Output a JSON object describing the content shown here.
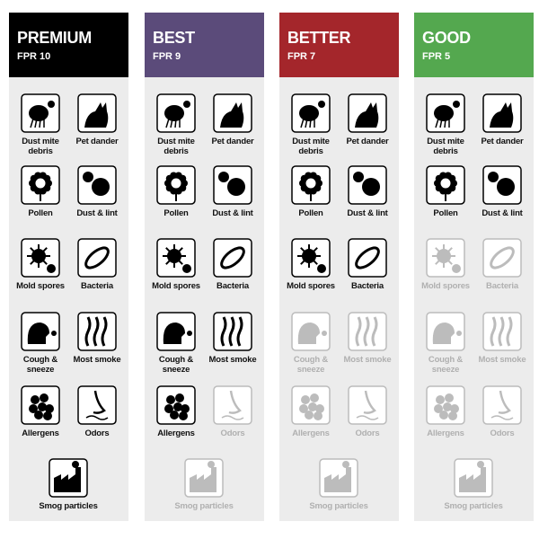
{
  "columns": [
    {
      "title": "PREMIUM",
      "rating": "FPR 10",
      "color": "#000000",
      "items": [
        {
          "label": "Dust mite debris",
          "active": true
        },
        {
          "label": "Pet dander",
          "active": true
        },
        {
          "label": "Pollen",
          "active": true
        },
        {
          "label": "Dust & lint",
          "active": true
        },
        {
          "label": "Mold spores",
          "active": true
        },
        {
          "label": "Bacteria",
          "active": true
        },
        {
          "label": "Cough & sneeze",
          "active": true
        },
        {
          "label": "Most smoke",
          "active": true
        },
        {
          "label": "Allergens",
          "active": true
        },
        {
          "label": "Odors",
          "active": true
        },
        {
          "label": "Smog particles",
          "active": true
        }
      ]
    },
    {
      "title": "BEST",
      "rating": "FPR 9",
      "color": "#5b4b7a",
      "items": [
        {
          "label": "Dust mite debris",
          "active": true
        },
        {
          "label": "Pet dander",
          "active": true
        },
        {
          "label": "Pollen",
          "active": true
        },
        {
          "label": "Dust & lint",
          "active": true
        },
        {
          "label": "Mold spores",
          "active": true
        },
        {
          "label": "Bacteria",
          "active": true
        },
        {
          "label": "Cough & sneeze",
          "active": true
        },
        {
          "label": "Most smoke",
          "active": true
        },
        {
          "label": "Allergens",
          "active": true
        },
        {
          "label": "Odors",
          "active": false
        },
        {
          "label": "Smog particles",
          "active": false
        }
      ]
    },
    {
      "title": "BETTER",
      "rating": "FPR 7",
      "color": "#a4262b",
      "items": [
        {
          "label": "Dust mite debris",
          "active": true
        },
        {
          "label": "Pet dander",
          "active": true
        },
        {
          "label": "Pollen",
          "active": true
        },
        {
          "label": "Dust & lint",
          "active": true
        },
        {
          "label": "Mold spores",
          "active": true
        },
        {
          "label": "Bacteria",
          "active": true
        },
        {
          "label": "Cough & sneeze",
          "active": false
        },
        {
          "label": "Most smoke",
          "active": false
        },
        {
          "label": "Allergens",
          "active": false
        },
        {
          "label": "Odors",
          "active": false
        },
        {
          "label": "Smog particles",
          "active": false
        }
      ]
    },
    {
      "title": "GOOD",
      "rating": "FPR 5",
      "color": "#54a84f",
      "items": [
        {
          "label": "Dust mite debris",
          "active": true
        },
        {
          "label": "Pet dander",
          "active": true
        },
        {
          "label": "Pollen",
          "active": true
        },
        {
          "label": "Dust & lint",
          "active": true
        },
        {
          "label": "Mold spores",
          "active": false
        },
        {
          "label": "Bacteria",
          "active": false
        },
        {
          "label": "Cough & sneeze",
          "active": false
        },
        {
          "label": "Most smoke",
          "active": false
        },
        {
          "label": "Allergens",
          "active": false
        },
        {
          "label": "Odors",
          "active": false
        },
        {
          "label": "Smog particles",
          "active": false
        }
      ]
    }
  ]
}
